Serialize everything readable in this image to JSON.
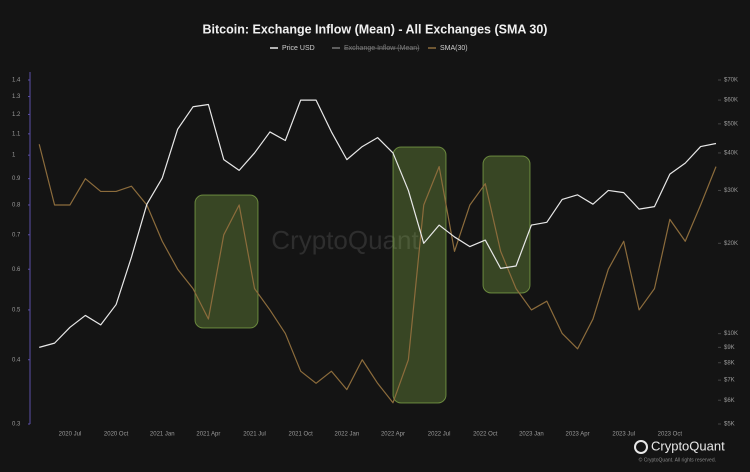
{
  "chart_data": {
    "type": "line",
    "title": "Bitcoin: Exchange Inflow (Mean) - All Exchanges (SMA 30)",
    "watermark": "CryptoQuant",
    "brand": "CryptoQuant",
    "copyright": "© CryptoQuant. All rights reserved.",
    "categories": [
      null,
      null,
      "2020 Jul",
      null,
      null,
      "2020 Oct",
      null,
      null,
      "2021 Jan",
      null,
      null,
      "2021 Apr",
      null,
      null,
      "2021 Jul",
      null,
      null,
      "2021 Oct",
      null,
      null,
      "2022 Jan",
      null,
      null,
      "2022 Apr",
      null,
      null,
      "2022 Jul",
      null,
      null,
      "2022 Oct",
      null,
      null,
      "2023 Jan",
      null,
      null,
      "2023 Apr",
      null,
      null,
      "2023 Jul",
      null,
      null,
      "2023 Oct",
      null,
      null,
      null
    ],
    "series": [
      {
        "name": "Price USD",
        "color": "#e8e8e8",
        "axis": "y2",
        "values": [
          9000,
          9300,
          10500,
          11500,
          10700,
          12500,
          18000,
          27000,
          33000,
          48000,
          57000,
          58000,
          38000,
          35000,
          40000,
          47000,
          44000,
          60000,
          60000,
          47000,
          38000,
          42000,
          45000,
          40000,
          30000,
          20000,
          23000,
          21000,
          19500,
          20500,
          16500,
          16800,
          23000,
          23500,
          28000,
          29000,
          27000,
          30000,
          29500,
          26000,
          26500,
          34000,
          37000,
          42000,
          43000
        ]
      },
      {
        "name": "Exchange Inflow (Mean)",
        "color": "#9a8a6a",
        "visible": false
      },
      {
        "name": "SMA(30)",
        "color": "#8c6c3c",
        "axis": "y",
        "values": [
          1.05,
          0.8,
          0.8,
          0.9,
          0.85,
          0.85,
          0.87,
          0.8,
          0.68,
          0.6,
          0.55,
          0.48,
          0.7,
          0.8,
          0.55,
          0.5,
          0.45,
          0.38,
          0.36,
          0.38,
          0.35,
          0.4,
          0.36,
          0.33,
          0.4,
          0.8,
          0.95,
          0.65,
          0.8,
          0.88,
          0.65,
          0.55,
          0.5,
          0.52,
          0.45,
          0.42,
          0.48,
          0.6,
          0.68,
          0.5,
          0.55,
          0.75,
          0.68,
          0.8,
          0.95
        ]
      }
    ],
    "ylim": [
      0.3,
      1.4
    ],
    "log_y": true,
    "yticks": [
      0.3,
      0.4,
      0.5,
      0.6,
      0.7,
      0.8,
      0.9,
      1,
      1.1,
      1.2,
      1.3,
      1.4
    ],
    "y2lim": [
      5000,
      70000
    ],
    "log_y2": true,
    "y2ticks": [
      {
        "value": 5000,
        "label": "$5K"
      },
      {
        "value": 6000,
        "label": "$6K"
      },
      {
        "value": 7000,
        "label": "$7K"
      },
      {
        "value": 8000,
        "label": "$8K"
      },
      {
        "value": 9000,
        "label": "$9K"
      },
      {
        "value": 10000,
        "label": "$10K"
      },
      {
        "value": 20000,
        "label": "$20K"
      },
      {
        "value": 30000,
        "label": "$30K"
      },
      {
        "value": 40000,
        "label": "$40K"
      },
      {
        "value": 50000,
        "label": "$50K"
      },
      {
        "value": 60000,
        "label": "$60K"
      },
      {
        "value": 70000,
        "label": "$70K"
      }
    ],
    "grid": false
  }
}
